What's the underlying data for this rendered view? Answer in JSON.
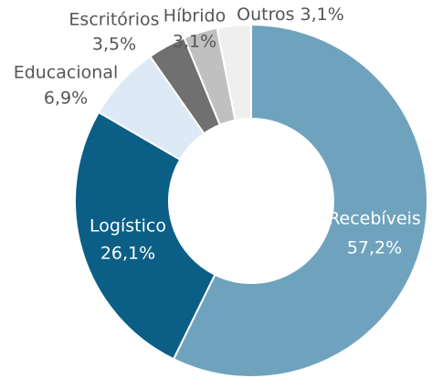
{
  "chart_data": {
    "type": "donut",
    "categories": [
      "Recebíveis",
      "Logístico",
      "Educacional",
      "Escritórios",
      "Híbrido",
      "Outros"
    ],
    "values": [
      57.2,
      26.1,
      6.9,
      3.5,
      3.1,
      3.1
    ],
    "value_labels": [
      "57,2%",
      "26,1%",
      "6,9%",
      "3,5%",
      "3,1%",
      "3,1%"
    ],
    "colors": [
      "#6fa3bd",
      "#0b5f87",
      "#dde9f5",
      "#707070",
      "#c0c0c0",
      "#efefef"
    ]
  }
}
